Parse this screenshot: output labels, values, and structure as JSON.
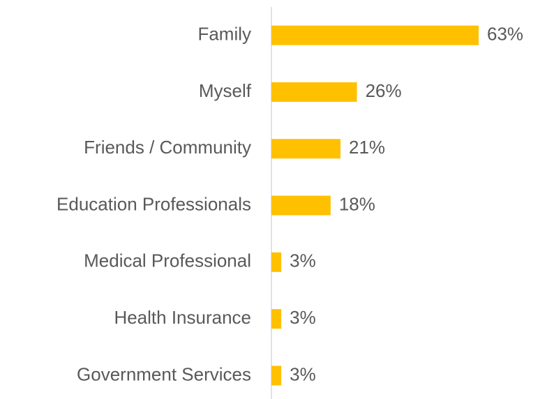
{
  "chart_data": {
    "type": "hbar",
    "categories": [
      "Family",
      "Myself",
      "Friends / Community",
      "Education Professionals",
      "Medical Professional",
      "Health Insurance",
      "Government Services"
    ],
    "values": [
      63,
      26,
      21,
      18,
      3,
      3,
      3
    ],
    "value_labels": [
      "63%",
      "26%",
      "21%",
      "18%",
      "3%",
      "3%",
      "3%"
    ],
    "color": "#FFC000"
  }
}
